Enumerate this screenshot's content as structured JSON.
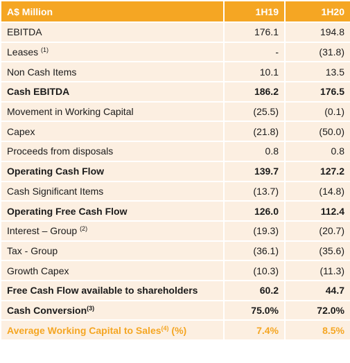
{
  "table": {
    "header": [
      "A$ Million",
      "1H19",
      "1H20"
    ],
    "rows": [
      {
        "label": "EBITDA",
        "values": [
          "176.1",
          "194.8"
        ]
      },
      {
        "label": "Leases",
        "note": "(1)",
        "values": [
          "-",
          "(31.8)"
        ]
      },
      {
        "label": "Non Cash Items",
        "values": [
          "10.1",
          "13.5"
        ]
      },
      {
        "label": "Cash EBITDA",
        "bold": true,
        "values": [
          "186.2",
          "176.5"
        ]
      },
      {
        "label": "Movement in Working Capital",
        "values": [
          "(25.5)",
          "(0.1)"
        ]
      },
      {
        "label": "Capex",
        "values": [
          "(21.8)",
          "(50.0)"
        ]
      },
      {
        "label": "Proceeds from disposals",
        "values": [
          "0.8",
          "0.8"
        ]
      },
      {
        "label": "Operating Cash Flow",
        "bold": true,
        "values": [
          "139.7",
          "127.2"
        ]
      },
      {
        "label": "Cash Significant Items",
        "values": [
          "(13.7)",
          "(14.8)"
        ]
      },
      {
        "label": "Operating Free Cash Flow",
        "bold": true,
        "values": [
          "126.0",
          "112.4"
        ]
      },
      {
        "label": "Interest – Group",
        "note": "(2)",
        "values": [
          "(19.3)",
          "(20.7)"
        ]
      },
      {
        "label": "Tax - Group",
        "values": [
          "(36.1)",
          "(35.6)"
        ]
      },
      {
        "label": "Growth Capex",
        "values": [
          "(10.3)",
          "(11.3)"
        ]
      },
      {
        "label": "Free Cash Flow available to shareholders",
        "bold": true,
        "values": [
          "60.2",
          "44.7"
        ]
      },
      {
        "label": "Cash Conversion",
        "note": "(3)",
        "bold": true,
        "values": [
          "75.0%",
          "72.0%"
        ]
      },
      {
        "label": "Average Working Capital to Sales",
        "note": "(4)",
        "suffix": " (%)",
        "bold": true,
        "highlight": true,
        "values": [
          "7.4%",
          "8.5%"
        ]
      }
    ]
  }
}
